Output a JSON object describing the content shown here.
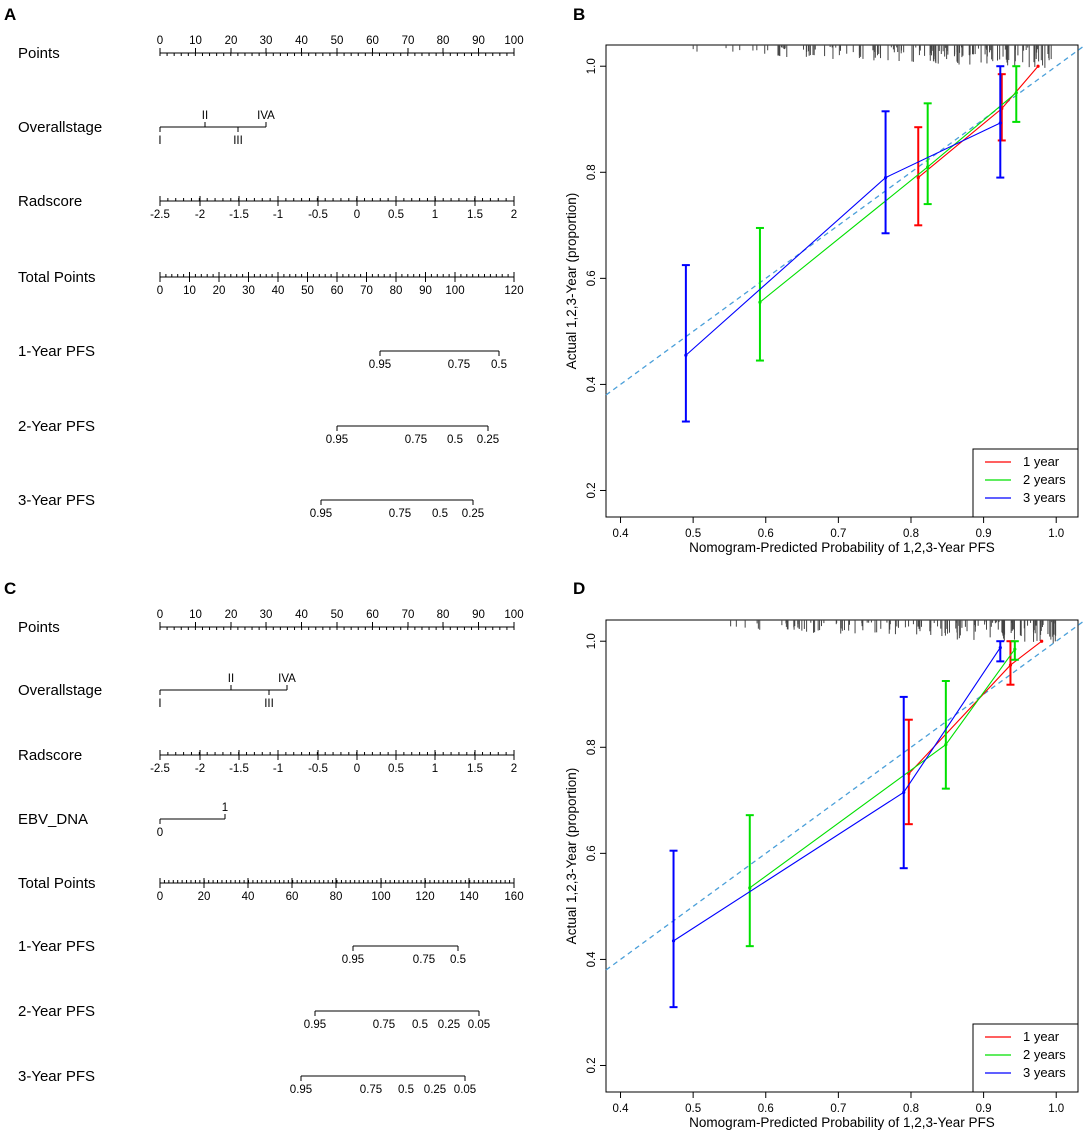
{
  "figure": {
    "panels": {
      "A": {
        "letter": "A",
        "rows": [
          {
            "label": "Points",
            "style": "top",
            "ticks": [
              0,
              10,
              20,
              30,
              40,
              50,
              60,
              70,
              80,
              90,
              100
            ],
            "labels": [
              "0",
              "10",
              "20",
              "30",
              "40",
              "50",
              "60",
              "70",
              "80",
              "90",
              "100"
            ],
            "minor": 50
          },
          {
            "label": "Overallstage",
            "style": "stage",
            "stage_above": [
              "II",
              "IVA"
            ],
            "stage_below": [
              "I",
              "III"
            ]
          },
          {
            "label": "Radscore",
            "style": "bottom",
            "labels": [
              "-2.5",
              "-2",
              "-1.5",
              "-1",
              "-0.5",
              "0",
              "0.5",
              "1",
              "1.5",
              "2"
            ],
            "minor": 45
          },
          {
            "label": "Total Points",
            "style": "bottom",
            "labels": [
              "0",
              "10",
              "20",
              "30",
              "40",
              "50",
              "60",
              "70",
              "80",
              "90",
              "100",
              "120"
            ],
            "minor": 60
          },
          {
            "label": "1-Year PFS",
            "style": "hang",
            "labels": [
              "0.95",
              "0.75",
              "0.5"
            ]
          },
          {
            "label": "2-Year PFS",
            "style": "hang",
            "labels": [
              "0.95",
              "0.75",
              "0.5",
              "0.25"
            ]
          },
          {
            "label": "3-Year PFS",
            "style": "hang",
            "labels": [
              "0.95",
              "0.75",
              "0.5",
              "0.25"
            ]
          }
        ]
      },
      "C": {
        "letter": "C",
        "rows": [
          {
            "label": "Points",
            "style": "top",
            "labels": [
              "0",
              "10",
              "20",
              "30",
              "40",
              "50",
              "60",
              "70",
              "80",
              "90",
              "100"
            ],
            "minor": 50
          },
          {
            "label": "Overallstage",
            "style": "stage",
            "stage_above": [
              "II",
              "IVA"
            ],
            "stage_below": [
              "I",
              "III"
            ]
          },
          {
            "label": "Radscore",
            "style": "bottom",
            "labels": [
              "-2.5",
              "-2",
              "-1.5",
              "-1",
              "-0.5",
              "0",
              "0.5",
              "1",
              "1.5",
              "2"
            ],
            "minor": 45
          },
          {
            "label": "EBV_DNA",
            "style": "binary",
            "labels": [
              "0",
              "1"
            ]
          },
          {
            "label": "Total Points",
            "style": "bottom",
            "labels": [
              "0",
              "20",
              "40",
              "60",
              "80",
              "100",
              "120",
              "140",
              "160"
            ],
            "minor": 80
          },
          {
            "label": "1-Year PFS",
            "style": "hang",
            "labels": [
              "0.95",
              "0.75",
              "0.5"
            ]
          },
          {
            "label": "2-Year PFS",
            "style": "hang",
            "labels": [
              "0.95",
              "0.75",
              "0.5",
              "0.25",
              "0.05"
            ]
          },
          {
            "label": "3-Year PFS",
            "style": "hang",
            "labels": [
              "0.95",
              "0.75",
              "0.5",
              "0.25",
              "0.05"
            ]
          }
        ]
      }
    }
  },
  "chart_data": [
    {
      "panel": "B",
      "type": "line",
      "title": "",
      "xlabel": "Nomogram-Predicted Probability of 1,2,3-Year PFS",
      "ylabel": "Actual 1,2,3-Year (proportion)",
      "xlim": [
        0.38,
        1.03
      ],
      "ylim": [
        0.15,
        1.04
      ],
      "xticks": [
        0.4,
        0.5,
        0.6,
        0.7,
        0.8,
        0.9,
        1.0
      ],
      "xtick_labels": [
        "0.4",
        "0.5",
        "0.6",
        "0.7",
        "0.8",
        "0.9",
        "1.0"
      ],
      "yticks": [
        0.2,
        0.4,
        0.6,
        0.8,
        1.0
      ],
      "ytick_labels": [
        "0.2",
        "0.4",
        "0.6",
        "0.8",
        "1.0"
      ],
      "reference_line": "diagonal dashed",
      "legend_position": "bottom-right",
      "series": [
        {
          "name": "1 year",
          "color": "#ff0000",
          "points": [
            {
              "x": 0.81,
              "y": 0.79,
              "lo": 0.7,
              "hi": 0.885
            },
            {
              "x": 0.925,
              "y": 0.92,
              "lo": 0.86,
              "hi": 0.985
            },
            {
              "x": 0.975,
              "y": 1.0,
              "lo": 1.0,
              "hi": 1.0
            }
          ]
        },
        {
          "name": "2 years",
          "color": "#00e000",
          "points": [
            {
              "x": 0.592,
              "y": 0.555,
              "lo": 0.445,
              "hi": 0.695
            },
            {
              "x": 0.823,
              "y": 0.81,
              "lo": 0.74,
              "hi": 0.93
            },
            {
              "x": 0.945,
              "y": 0.95,
              "lo": 0.895,
              "hi": 1.0
            }
          ]
        },
        {
          "name": "3 years",
          "color": "#0000ff",
          "points": [
            {
              "x": 0.49,
              "y": 0.455,
              "lo": 0.33,
              "hi": 0.625
            },
            {
              "x": 0.765,
              "y": 0.79,
              "lo": 0.685,
              "hi": 0.915
            },
            {
              "x": 0.923,
              "y": 0.893,
              "lo": 0.79,
              "hi": 1.0
            }
          ]
        }
      ]
    },
    {
      "panel": "D",
      "type": "line",
      "title": "",
      "xlabel": "Nomogram-Predicted Probability of 1,2,3-Year PFS",
      "ylabel": "Actual 1,2,3-Year (proportion)",
      "xlim": [
        0.38,
        1.03
      ],
      "ylim": [
        0.15,
        1.04
      ],
      "xticks": [
        0.4,
        0.5,
        0.6,
        0.7,
        0.8,
        0.9,
        1.0
      ],
      "xtick_labels": [
        "0.4",
        "0.5",
        "0.6",
        "0.7",
        "0.8",
        "0.9",
        "1.0"
      ],
      "yticks": [
        0.2,
        0.4,
        0.6,
        0.8,
        1.0
      ],
      "ytick_labels": [
        "0.2",
        "0.4",
        "0.6",
        "0.8",
        "1.0"
      ],
      "reference_line": "diagonal dashed",
      "legend_position": "bottom-right",
      "series": [
        {
          "name": "1 year",
          "color": "#ff0000",
          "points": [
            {
              "x": 0.797,
              "y": 0.75,
              "lo": 0.655,
              "hi": 0.852
            },
            {
              "x": 0.937,
              "y": 0.955,
              "lo": 0.918,
              "hi": 1.0
            },
            {
              "x": 0.98,
              "y": 1.0,
              "lo": 1.0,
              "hi": 1.0
            }
          ]
        },
        {
          "name": "2 years",
          "color": "#00e000",
          "points": [
            {
              "x": 0.578,
              "y": 0.535,
              "lo": 0.425,
              "hi": 0.672
            },
            {
              "x": 0.848,
              "y": 0.805,
              "lo": 0.722,
              "hi": 0.925
            },
            {
              "x": 0.943,
              "y": 0.985,
              "lo": 0.965,
              "hi": 1.0
            }
          ]
        },
        {
          "name": "3 years",
          "color": "#0000ff",
          "points": [
            {
              "x": 0.473,
              "y": 0.435,
              "lo": 0.31,
              "hi": 0.605
            },
            {
              "x": 0.79,
              "y": 0.715,
              "lo": 0.572,
              "hi": 0.895
            },
            {
              "x": 0.923,
              "y": 0.988,
              "lo": 0.962,
              "hi": 1.0
            }
          ]
        }
      ]
    }
  ]
}
